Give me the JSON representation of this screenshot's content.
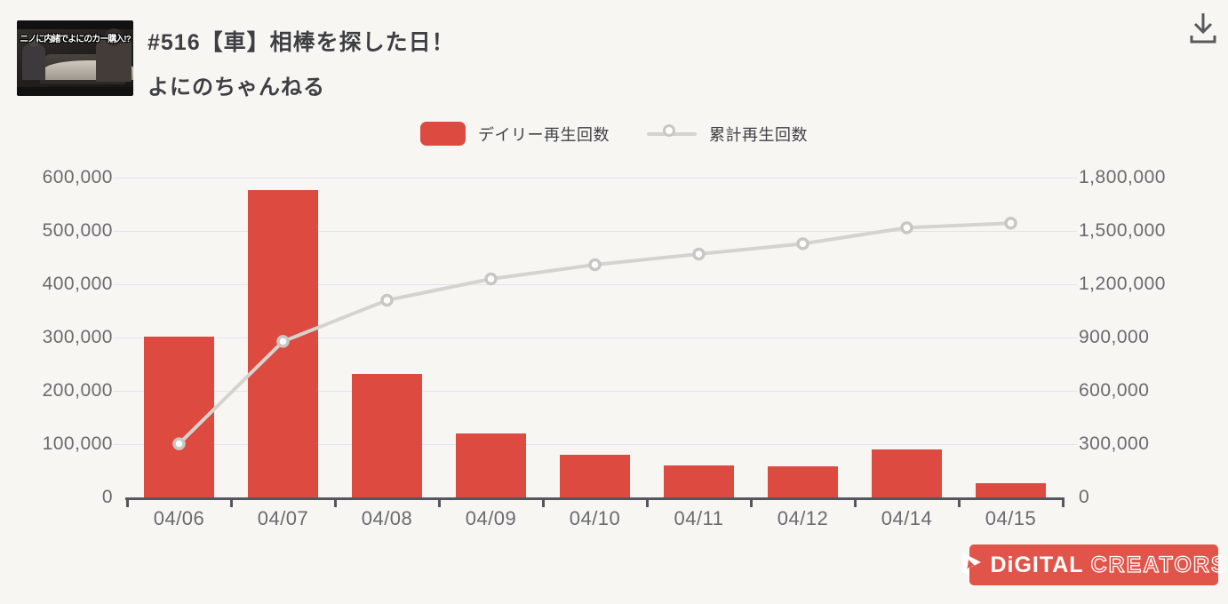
{
  "header": {
    "title": "#516【車】相棒を探した日！",
    "channel": "よにのちゃんねる",
    "thumbnail_text": "ニノに内緒でよにのカー購入!?"
  },
  "toolbar": {
    "download_icon": "download-icon"
  },
  "legend": {
    "daily_label": "デイリー再生回数",
    "cumulative_label": "累計再生回数"
  },
  "chart_data": {
    "type": "bar",
    "subtype": "combo-bar-line",
    "categories": [
      "04/06",
      "04/07",
      "04/08",
      "04/09",
      "04/10",
      "04/11",
      "04/12",
      "04/14",
      "04/15"
    ],
    "series": [
      {
        "name": "デイリー再生回数",
        "type": "bar",
        "axis": "left",
        "color": "#dc4a40",
        "values": [
          302000,
          576000,
          232000,
          120000,
          80000,
          60000,
          58000,
          90000,
          26000
        ]
      },
      {
        "name": "累計再生回数",
        "type": "line",
        "axis": "right",
        "color": "#d5d3d0",
        "marker": "open-circle",
        "values": [
          302000,
          878000,
          1110000,
          1230000,
          1310000,
          1370000,
          1428000,
          1518000,
          1544000
        ]
      }
    ],
    "left_axis": {
      "min": 0,
      "max": 600000,
      "step": 100000,
      "tick_labels": [
        "600,000",
        "500,000",
        "400,000",
        "300,000",
        "200,000",
        "100,000",
        "0"
      ]
    },
    "right_axis": {
      "min": 0,
      "max": 1800000,
      "step": 300000,
      "tick_labels": [
        "1,800,000",
        "1,500,000",
        "1,200,000",
        "900,000",
        "600,000",
        "300,000",
        "0"
      ]
    },
    "grid": true,
    "legend_position": "top",
    "title": ""
  },
  "footer": {
    "logo_primary": "DiGITAL",
    "logo_secondary": "CREATORS"
  },
  "colors": {
    "background": "#f8f6f3",
    "bar_red": "#dc4a40",
    "line_gray": "#d5d3d0",
    "marker_ring": "#c9c7c4",
    "gridline": "#dfe4f0",
    "axis_dark": "#55565e",
    "logo_red": "#e0544a"
  }
}
